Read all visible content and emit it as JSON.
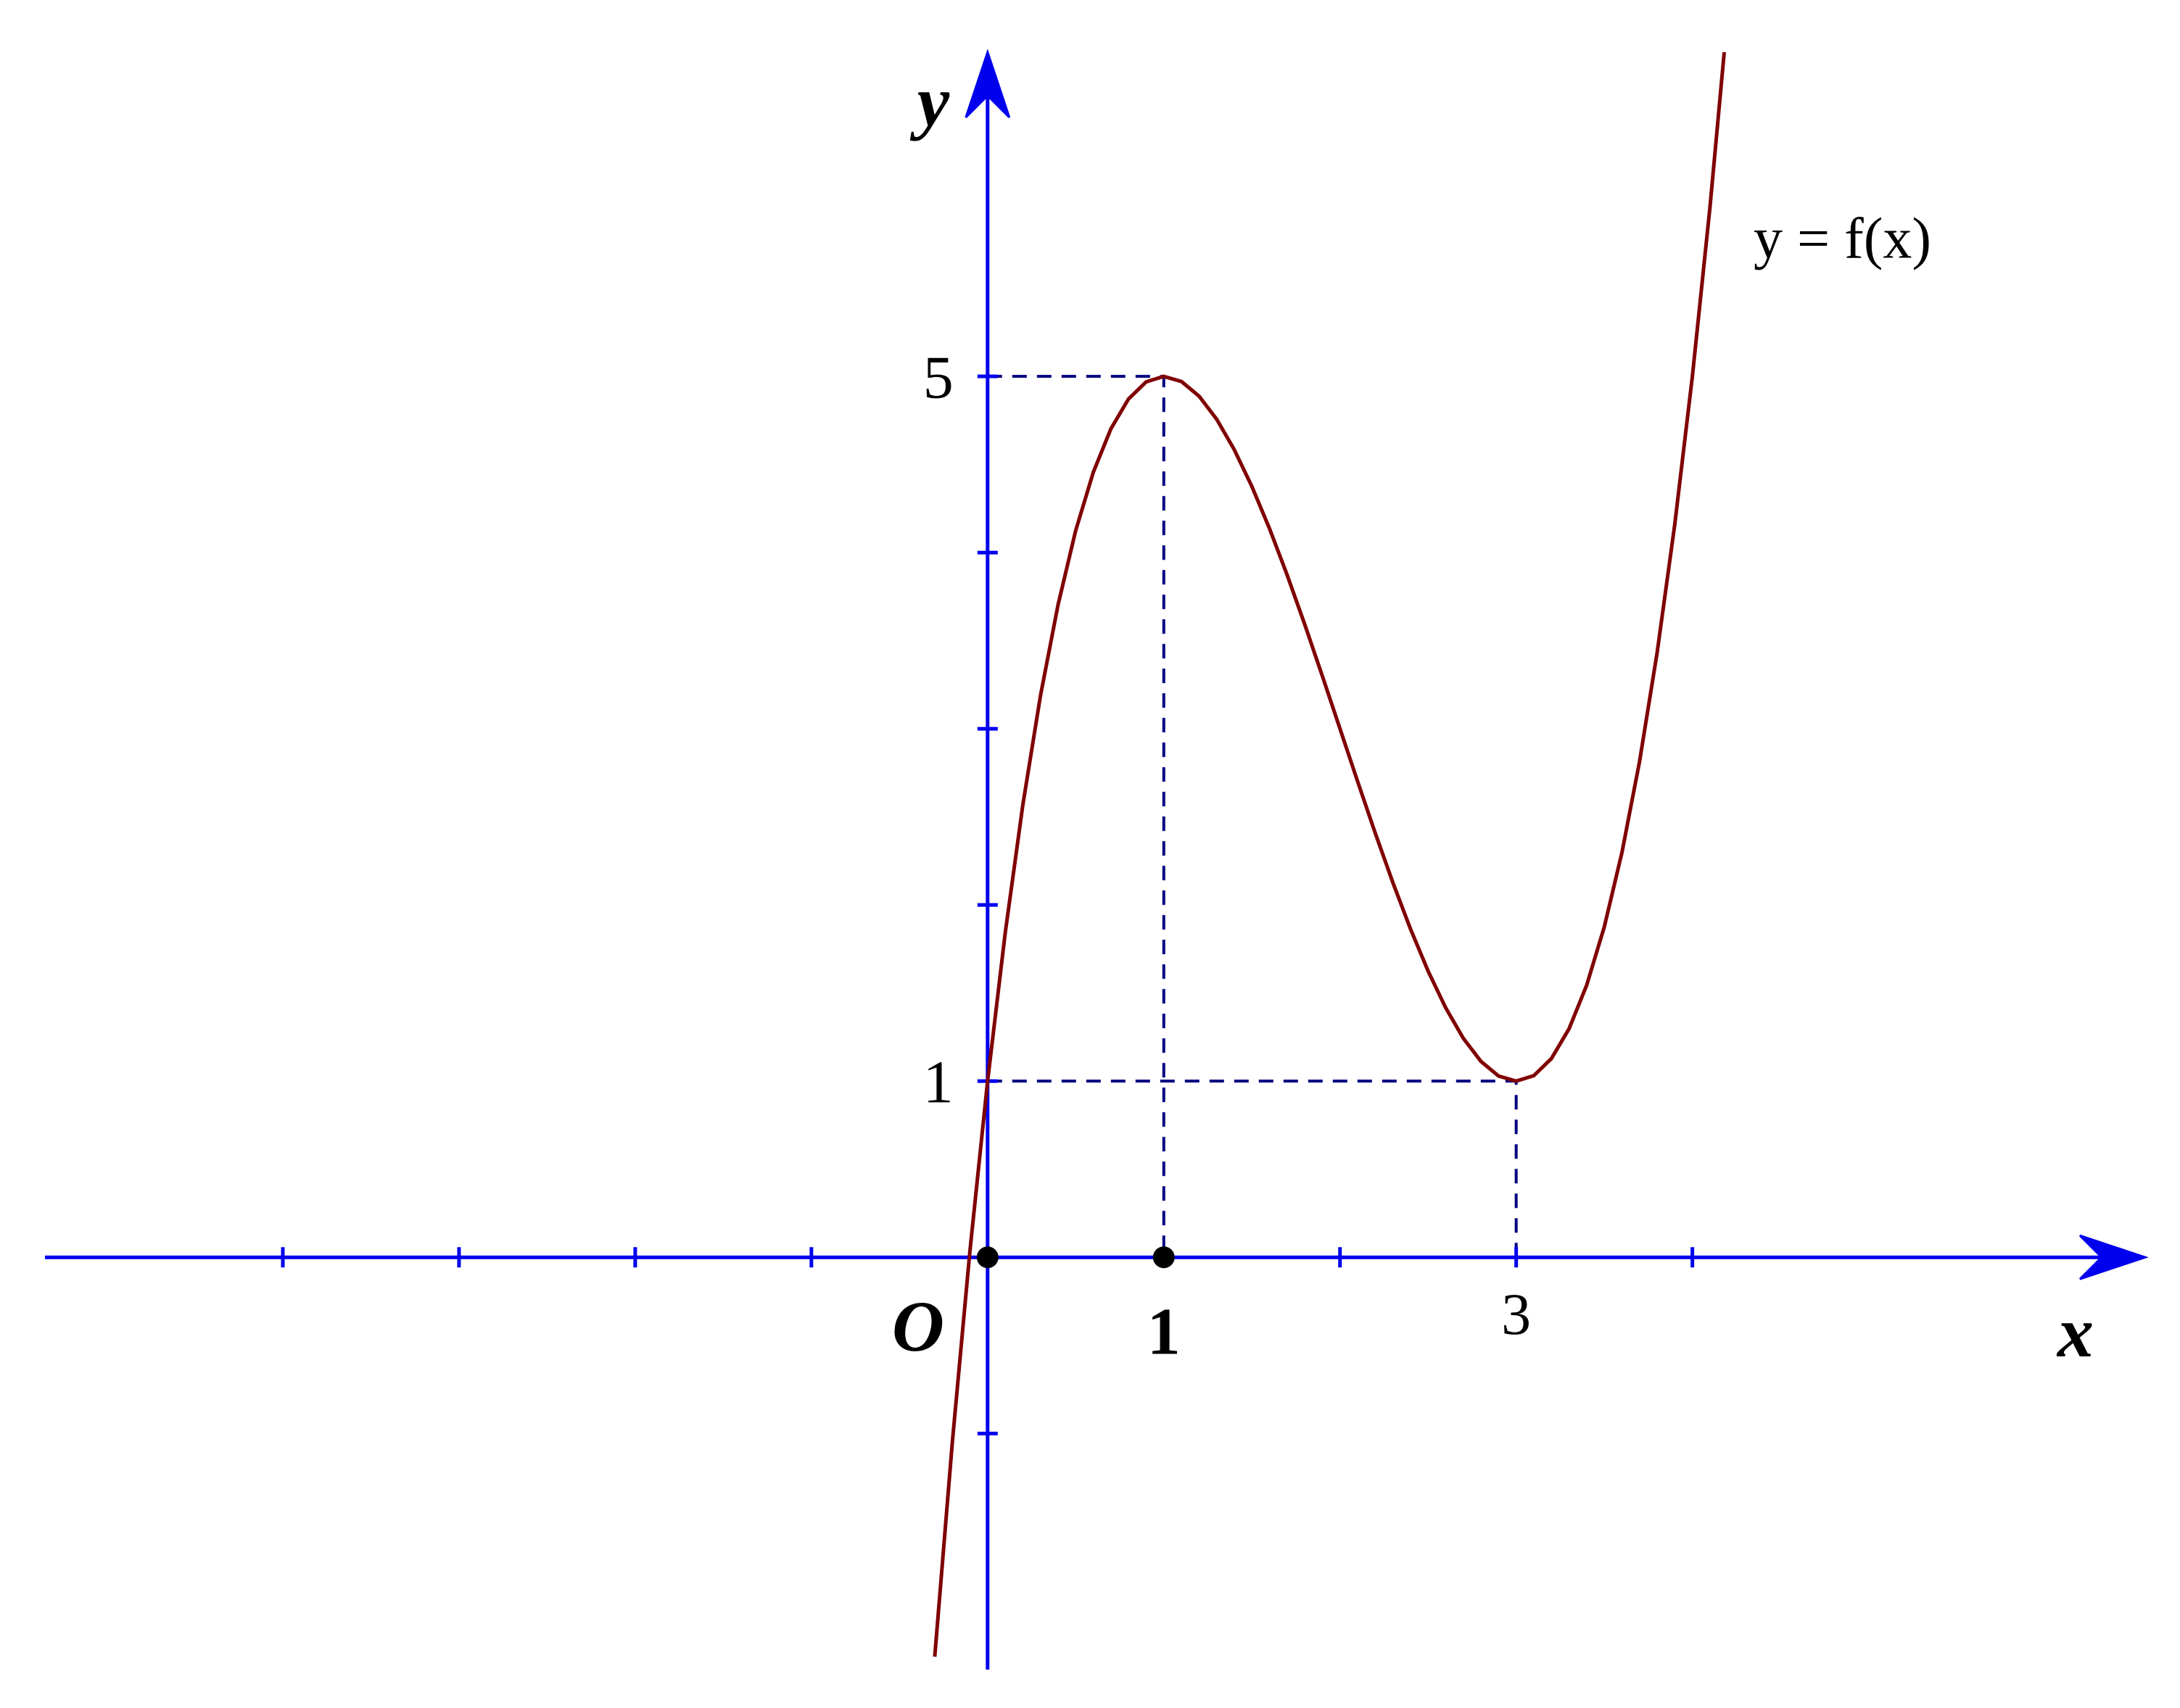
{
  "chart_data": {
    "type": "line",
    "annotation": "y = f(x)",
    "x_label": "x",
    "y_label": "y",
    "origin_label": "O",
    "x": [
      -0.3,
      -0.2,
      -0.1,
      0,
      0.1,
      0.2,
      0.3,
      0.4,
      0.5,
      0.6,
      0.7,
      0.8,
      0.9,
      1,
      1.1,
      1.2,
      1.3,
      1.4,
      1.5,
      1.6,
      1.7,
      1.8,
      1.9,
      2,
      2.1,
      2.2,
      2.3,
      2.4,
      2.5,
      2.6,
      2.7,
      2.8,
      2.9,
      3,
      3.1,
      3.2,
      3.3,
      3.4,
      3.5,
      3.6,
      3.7,
      3.8,
      3.9,
      4,
      4.1,
      4.2
    ],
    "values": [
      -2.267,
      -1.048,
      0.039,
      1,
      1.841,
      2.568,
      3.187,
      3.704,
      4.125,
      4.456,
      4.703,
      4.872,
      4.969,
      5,
      4.971,
      4.888,
      4.757,
      4.584,
      4.375,
      4.136,
      3.873,
      3.592,
      3.299,
      3,
      2.701,
      2.408,
      2.127,
      1.864,
      1.625,
      1.416,
      1.243,
      1.112,
      1.029,
      1,
      1.031,
      1.128,
      1.297,
      1.544,
      1.875,
      2.296,
      2.813,
      3.432,
      4.159,
      5,
      5.961,
      7.048
    ],
    "color": "#800000",
    "axis_color": "#0000ee",
    "guide_color": "#000080",
    "xlim": [
      -5.35,
      6.57
    ],
    "ylim": [
      -2.34,
      6.84
    ],
    "xticks": [
      -4,
      -3,
      -2,
      -1,
      1,
      2,
      3,
      4
    ],
    "yticks": [
      -1,
      1,
      2,
      3,
      4,
      5
    ],
    "labeled_xticks": [
      1,
      3
    ],
    "labeled_yticks": [
      1,
      5
    ],
    "guides": [
      {
        "x": 1,
        "y": 5
      },
      {
        "x": 3,
        "y": 1
      }
    ],
    "points": [
      {
        "x": 0,
        "y": 0
      },
      {
        "x": 1,
        "y": 0
      }
    ]
  }
}
